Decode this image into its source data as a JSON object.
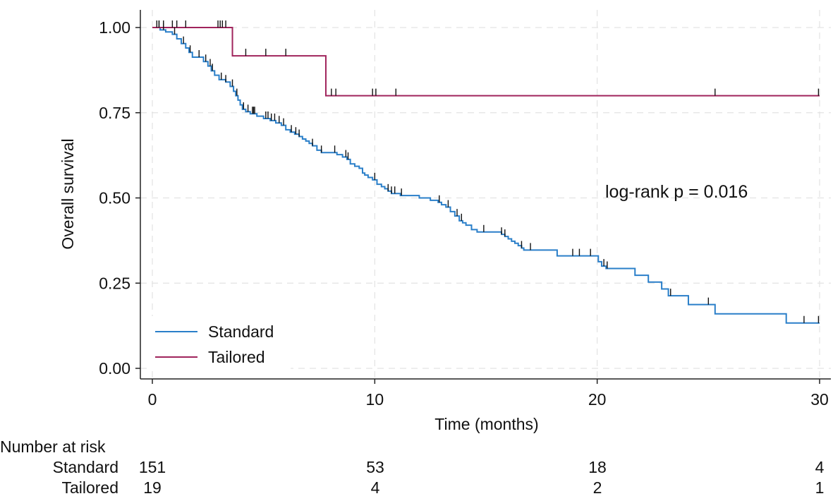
{
  "chart_data": {
    "type": "line",
    "subtype": "kaplan-meier",
    "xlabel": "Time (months)",
    "ylabel": "Overall survival",
    "xlim": [
      0,
      30
    ],
    "ylim": [
      0,
      1
    ],
    "xticks": [
      0,
      10,
      20,
      30
    ],
    "xtick_labels": [
      "0",
      "10",
      "20",
      "30"
    ],
    "yticks": [
      0,
      0.25,
      0.5,
      0.75,
      1
    ],
    "ytick_labels": [
      "0.00",
      "0.25",
      "0.50",
      "0.75",
      "1.00"
    ],
    "grid": true,
    "legend_position": "bottom-left",
    "annotation": "log-rank p = 0.016",
    "series": [
      {
        "name": "Standard",
        "color": "#2a7fc9",
        "steps": [
          [
            0,
            1.0
          ],
          [
            0.35,
            0.993
          ],
          [
            0.6,
            0.987
          ],
          [
            0.9,
            0.98
          ],
          [
            1.1,
            0.967
          ],
          [
            1.3,
            0.953
          ],
          [
            1.5,
            0.94
          ],
          [
            1.65,
            0.927
          ],
          [
            1.8,
            0.913
          ],
          [
            2.3,
            0.9
          ],
          [
            2.5,
            0.887
          ],
          [
            2.65,
            0.873
          ],
          [
            2.8,
            0.86
          ],
          [
            3.0,
            0.847
          ],
          [
            3.3,
            0.84
          ],
          [
            3.5,
            0.827
          ],
          [
            3.65,
            0.813
          ],
          [
            3.75,
            0.8
          ],
          [
            3.85,
            0.787
          ],
          [
            3.95,
            0.773
          ],
          [
            4.05,
            0.76
          ],
          [
            4.2,
            0.753
          ],
          [
            4.4,
            0.747
          ],
          [
            4.7,
            0.74
          ],
          [
            5.0,
            0.733
          ],
          [
            5.3,
            0.727
          ],
          [
            5.55,
            0.72
          ],
          [
            5.8,
            0.713
          ],
          [
            6.0,
            0.7
          ],
          [
            6.2,
            0.693
          ],
          [
            6.4,
            0.687
          ],
          [
            6.6,
            0.68
          ],
          [
            6.75,
            0.673
          ],
          [
            6.9,
            0.667
          ],
          [
            7.05,
            0.66
          ],
          [
            7.2,
            0.653
          ],
          [
            7.4,
            0.64
          ],
          [
            7.6,
            0.633
          ],
          [
            8.3,
            0.627
          ],
          [
            8.55,
            0.62
          ],
          [
            8.75,
            0.613
          ],
          [
            8.9,
            0.6
          ],
          [
            9.1,
            0.593
          ],
          [
            9.3,
            0.587
          ],
          [
            9.45,
            0.573
          ],
          [
            9.55,
            0.567
          ],
          [
            9.7,
            0.56
          ],
          [
            9.9,
            0.553
          ],
          [
            10.1,
            0.54
          ],
          [
            10.3,
            0.533
          ],
          [
            10.45,
            0.527
          ],
          [
            10.6,
            0.52
          ],
          [
            10.75,
            0.513
          ],
          [
            11.15,
            0.507
          ],
          [
            12.0,
            0.5
          ],
          [
            12.5,
            0.493
          ],
          [
            12.85,
            0.487
          ],
          [
            13.0,
            0.48
          ],
          [
            13.2,
            0.473
          ],
          [
            13.4,
            0.46
          ],
          [
            13.6,
            0.447
          ],
          [
            13.8,
            0.433
          ],
          [
            13.95,
            0.427
          ],
          [
            14.1,
            0.42
          ],
          [
            14.35,
            0.407
          ],
          [
            14.6,
            0.4
          ],
          [
            15.7,
            0.393
          ],
          [
            15.85,
            0.387
          ],
          [
            16.0,
            0.38
          ],
          [
            16.15,
            0.373
          ],
          [
            16.3,
            0.367
          ],
          [
            16.45,
            0.36
          ],
          [
            16.6,
            0.353
          ],
          [
            16.7,
            0.347
          ],
          [
            18.2,
            0.33
          ],
          [
            20.05,
            0.313
          ],
          [
            20.2,
            0.3
          ],
          [
            20.4,
            0.293
          ],
          [
            21.7,
            0.273
          ],
          [
            22.3,
            0.253
          ],
          [
            22.9,
            0.233
          ],
          [
            23.2,
            0.213
          ],
          [
            24.1,
            0.187
          ],
          [
            25.3,
            0.16
          ],
          [
            28.5,
            0.133
          ],
          [
            30,
            0.133
          ]
        ],
        "censored": [
          0.2,
          0.3,
          0.5,
          1.0,
          1.4,
          1.7,
          2.1,
          2.4,
          2.6,
          2.7,
          3.1,
          3.3,
          3.6,
          3.8,
          4.1,
          4.3,
          4.5,
          4.55,
          4.6,
          5.1,
          5.2,
          5.35,
          5.5,
          5.7,
          5.9,
          6.25,
          6.45,
          6.6,
          7.2,
          7.6,
          8.2,
          8.7,
          8.8,
          10.0,
          10.6,
          10.75,
          10.9,
          11.2,
          12.9,
          13.3,
          13.7,
          13.9,
          14.9,
          15.7,
          15.85,
          16.6,
          17.0,
          18.9,
          19.2,
          19.7,
          20.3,
          20.45,
          23.3,
          25.0,
          29.3,
          29.95
        ]
      },
      {
        "name": "Tailored",
        "color": "#a0245c",
        "steps": [
          [
            0,
            1.0
          ],
          [
            3.6,
            0.917
          ],
          [
            7.8,
            0.8
          ],
          [
            30,
            0.8
          ]
        ],
        "censored": [
          0.3,
          0.5,
          0.9,
          1.1,
          1.5,
          2.95,
          3.05,
          3.15,
          3.3,
          4.2,
          5.1,
          6.0,
          8.05,
          8.25,
          9.9,
          10.05,
          10.95,
          25.3,
          29.95
        ]
      }
    ]
  },
  "risk_table": {
    "title": "Number at risk",
    "times": [
      "0",
      "10",
      "20",
      "30"
    ],
    "rows": [
      {
        "label": "Standard",
        "counts": [
          "151",
          "53",
          "18",
          "4"
        ]
      },
      {
        "label": "Tailored",
        "counts": [
          "19",
          "4",
          "2",
          "1"
        ]
      }
    ]
  }
}
